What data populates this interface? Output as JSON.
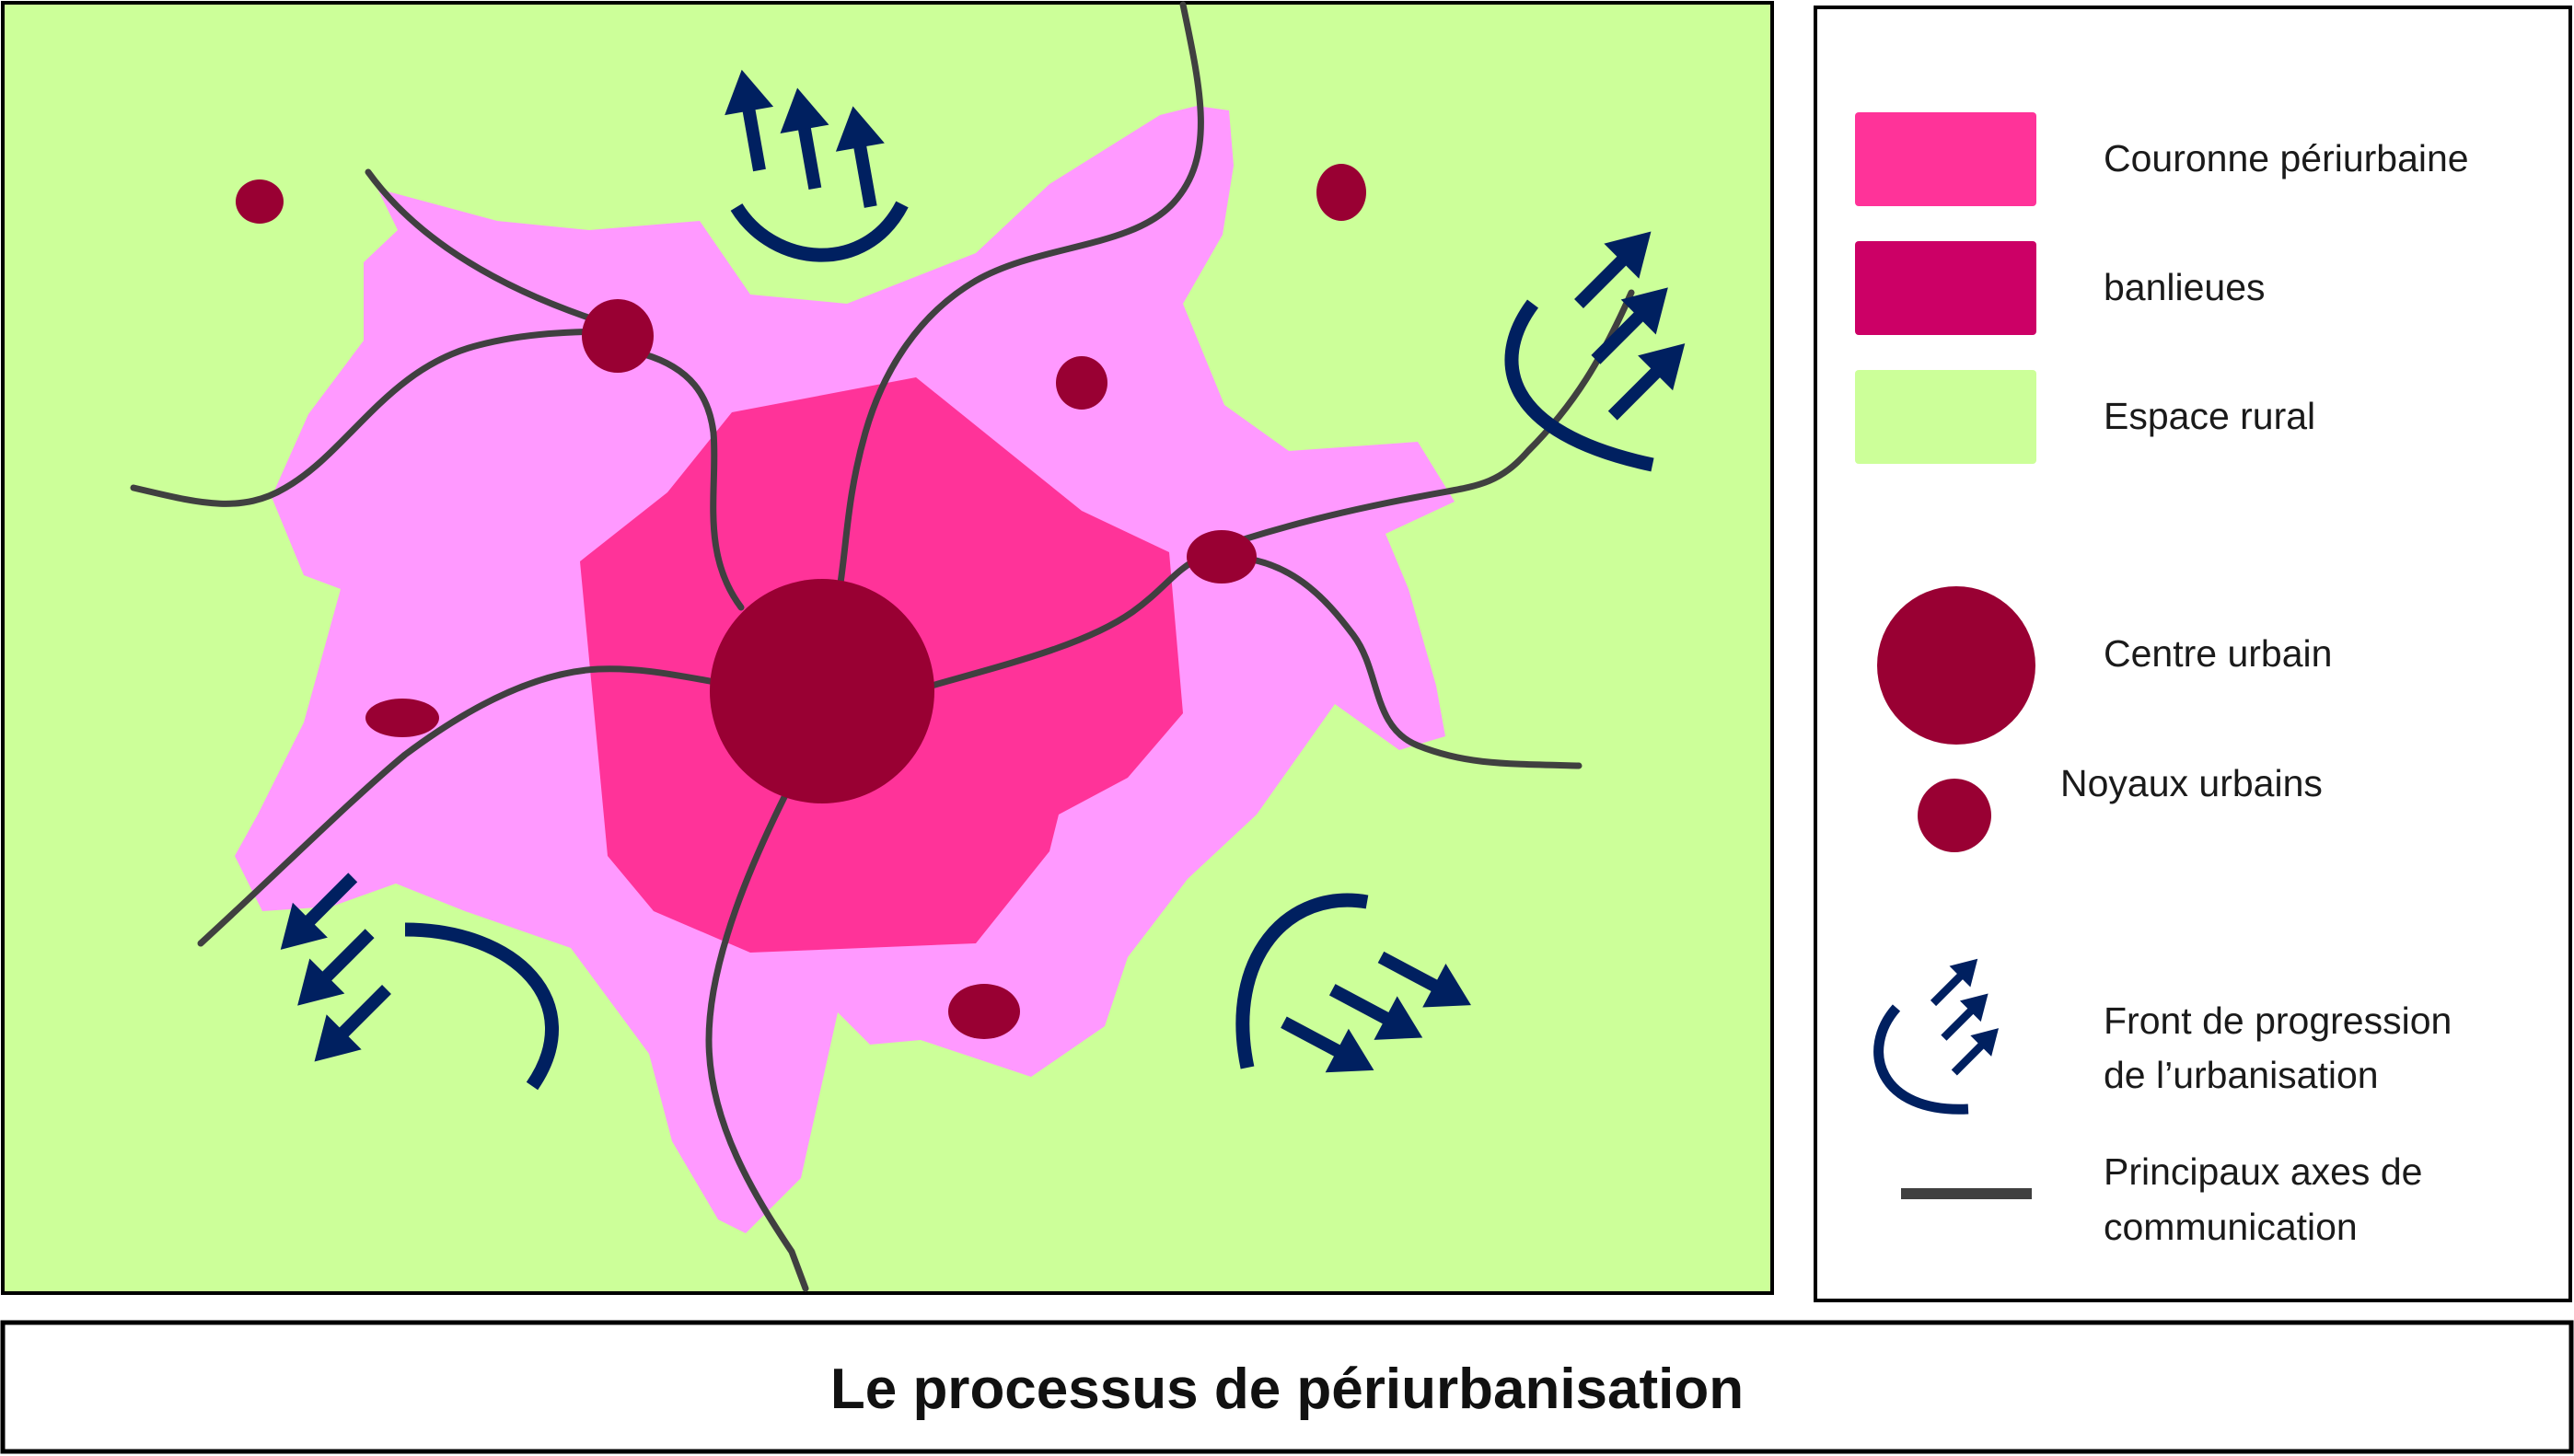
{
  "title": "Le processus de périurbanisation",
  "colors": {
    "periurban": "#ff99ff",
    "suburbs": "#ff3399",
    "rural": "#ccff99",
    "urban": "#990033",
    "front": "#002060",
    "roads": "#404040"
  },
  "legend": {
    "items": [
      {
        "key": "periurban",
        "label": "Couronne périurbaine"
      },
      {
        "key": "suburbs",
        "label": "banlieues"
      },
      {
        "key": "rural",
        "label": "Espace rural"
      },
      {
        "key": "center",
        "label": "Centre urbain"
      },
      {
        "key": "nuclei",
        "label": "Noyaux urbains"
      },
      {
        "key": "front",
        "label_line1": "Front de progression",
        "label_line2": "de l’urbanisation"
      },
      {
        "key": "roads",
        "label_line1": "Principaux axes de",
        "label_line2": "communication"
      }
    ]
  }
}
